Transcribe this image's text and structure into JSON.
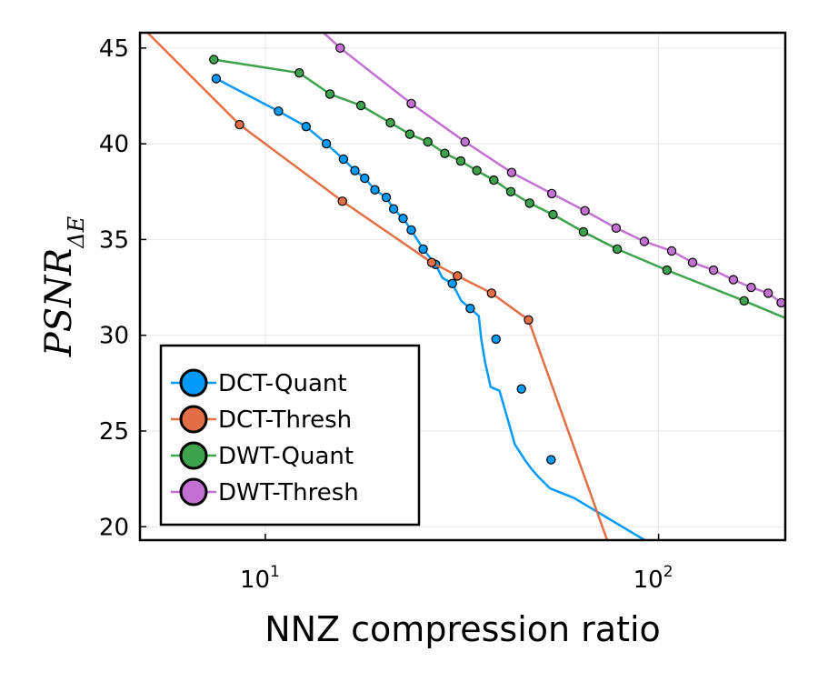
{
  "chart_data": {
    "type": "line",
    "title": "",
    "xlabel": "NNZ compression ratio",
    "ylabel": {
      "main": "PSNR",
      "sub": "ΔE"
    },
    "xscale": "log",
    "xlim": [
      4.8,
      210
    ],
    "ylim": [
      19.3,
      45.8
    ],
    "xticks": [
      {
        "value": 10,
        "base": "10",
        "exp": "1"
      },
      {
        "value": 100,
        "base": "10",
        "exp": "2"
      }
    ],
    "yticks": [
      20,
      25,
      30,
      35,
      40,
      45
    ],
    "grid": true,
    "legend": {
      "position": "bottom-left"
    },
    "series": [
      {
        "name": "DCT-Quant",
        "color": "#009af9",
        "x": [
          7.5,
          10.8,
          12.7,
          14.3,
          15.8,
          16.9,
          17.9,
          19.0,
          20.3,
          21.2,
          22.4,
          23.5,
          25.2,
          27.1,
          28.2,
          29.9,
          31.5,
          33.2,
          34.9,
          35.4,
          36.2,
          37.4,
          39.4,
          41.5,
          43.1,
          45.7,
          47.6,
          49.5,
          53.0,
          61.0,
          92.2
        ],
        "y": [
          43.4,
          41.7,
          40.9,
          40.0,
          39.2,
          38.6,
          38.2,
          37.6,
          37.2,
          36.6,
          36.1,
          35.5,
          34.5,
          33.7,
          33.0,
          32.7,
          31.8,
          31.4,
          31.0,
          29.8,
          28.6,
          27.3,
          27.1,
          25.5,
          24.3,
          23.5,
          23.0,
          22.6,
          22.0,
          21.5,
          19.3
        ],
        "markers": [
          [
            7.5,
            43.4
          ],
          [
            10.8,
            41.7
          ],
          [
            12.7,
            40.9
          ],
          [
            14.3,
            40.0
          ],
          [
            15.8,
            39.2
          ],
          [
            16.9,
            38.6
          ],
          [
            17.9,
            38.2
          ],
          [
            19.0,
            37.6
          ],
          [
            20.3,
            37.2
          ],
          [
            21.2,
            36.6
          ],
          [
            22.4,
            36.1
          ],
          [
            23.5,
            35.5
          ],
          [
            25.2,
            34.5
          ],
          [
            27.1,
            33.7
          ],
          [
            29.9,
            32.7
          ],
          [
            33.2,
            31.4
          ],
          [
            38.6,
            29.8
          ],
          [
            44.8,
            27.2
          ],
          [
            53.3,
            23.5
          ]
        ]
      },
      {
        "name": "DCT-Thresh",
        "color": "#e26f46",
        "x": [
          4.8,
          8.6,
          15.7,
          26.5,
          30.8,
          37.6,
          46.7,
          74.0
        ],
        "y": [
          46.2,
          41.0,
          37.0,
          33.8,
          33.1,
          32.2,
          30.8,
          19.3
        ],
        "markers": [
          [
            8.6,
            41.0
          ],
          [
            15.7,
            37.0
          ],
          [
            26.5,
            33.8
          ],
          [
            30.8,
            33.1
          ],
          [
            37.6,
            32.2
          ],
          [
            46.7,
            30.8
          ]
        ]
      },
      {
        "name": "DWT-Quant",
        "color": "#3da44d",
        "x": [
          7.4,
          12.2,
          14.6,
          17.5,
          20.8,
          23.3,
          25.9,
          28.6,
          31.4,
          34.5,
          38.1,
          42.1,
          47.0,
          53.9,
          64.4,
          78.5,
          105.0,
          165.0,
          210.0
        ],
        "y": [
          44.4,
          43.7,
          42.6,
          42.0,
          41.1,
          40.5,
          40.1,
          39.5,
          39.1,
          38.6,
          38.1,
          37.5,
          36.9,
          36.3,
          35.4,
          34.5,
          33.4,
          31.8,
          30.9
        ],
        "markers": [
          [
            7.4,
            44.4
          ],
          [
            12.2,
            43.7
          ],
          [
            14.6,
            42.6
          ],
          [
            17.5,
            42.0
          ],
          [
            20.8,
            41.1
          ],
          [
            23.3,
            40.5
          ],
          [
            25.9,
            40.1
          ],
          [
            28.6,
            39.5
          ],
          [
            31.4,
            39.1
          ],
          [
            34.5,
            38.6
          ],
          [
            38.1,
            38.1
          ],
          [
            42.1,
            37.5
          ],
          [
            47.0,
            36.9
          ],
          [
            53.9,
            36.3
          ],
          [
            64.4,
            35.4
          ],
          [
            78.5,
            34.5
          ],
          [
            105.0,
            33.4
          ],
          [
            165.0,
            31.8
          ]
        ]
      },
      {
        "name": "DWT-Thresh",
        "color": "#c271d2",
        "x": [
          13.4,
          15.5,
          23.5,
          32.2,
          42.3,
          53.5,
          65.0,
          78.0,
          92.0,
          108.0,
          122.0,
          138.0,
          155.0,
          172.0,
          190.0,
          205.0
        ],
        "y": [
          46.2,
          45.0,
          42.1,
          40.1,
          38.5,
          37.4,
          36.5,
          35.6,
          34.9,
          34.4,
          33.8,
          33.4,
          32.9,
          32.5,
          32.2,
          31.7
        ],
        "markers": [
          [
            15.5,
            45.0
          ],
          [
            23.5,
            42.1
          ],
          [
            32.2,
            40.1
          ],
          [
            42.3,
            38.5
          ],
          [
            53.5,
            37.4
          ],
          [
            65.0,
            36.5
          ],
          [
            78.0,
            35.6
          ],
          [
            92.0,
            34.9
          ],
          [
            108.0,
            34.4
          ],
          [
            122.0,
            33.8
          ],
          [
            138.0,
            33.4
          ],
          [
            155.0,
            32.9
          ],
          [
            172.0,
            32.5
          ],
          [
            190.0,
            32.2
          ],
          [
            205.0,
            31.7
          ]
        ]
      }
    ]
  }
}
